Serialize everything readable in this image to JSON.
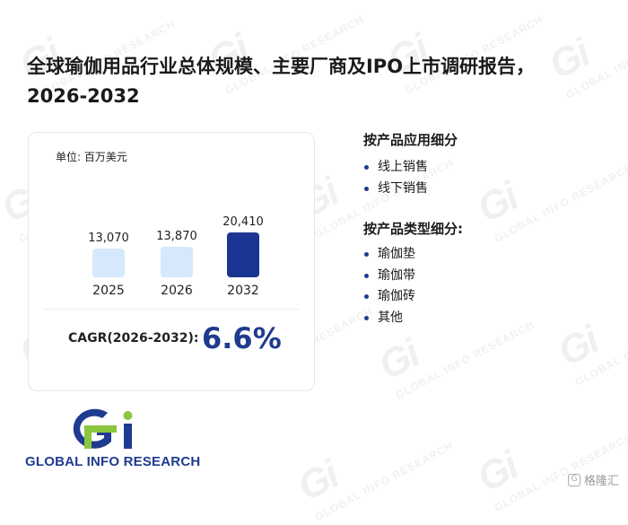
{
  "title": "全球瑜伽用品行业总体规模、主要厂商及IPO上市调研报告，2026-2032",
  "watermark": {
    "mark": "Gi",
    "text": "GLOBAL INFO RESEARCH"
  },
  "chart_data": {
    "type": "bar",
    "unit": "单位: 百万美元",
    "categories": [
      "2025",
      "2026",
      "2032"
    ],
    "values": [
      13070,
      13870,
      20410
    ],
    "value_labels": [
      "13,070",
      "13,870",
      "20,410"
    ],
    "bar_colors": [
      "#d6e8fb",
      "#d6e8fb",
      "#1a3692"
    ],
    "ylim": [
      0,
      20410
    ],
    "grid": false,
    "legend": "none"
  },
  "cagr": {
    "label": "CAGR(2026-2032):",
    "value": "6.6%"
  },
  "segments": [
    {
      "heading": "按产品应用细分",
      "items": [
        "线上销售",
        "线下销售"
      ]
    },
    {
      "heading": "按产品类型细分:",
      "items": [
        "瑜伽垫",
        "瑜伽带",
        "瑜伽砖",
        "其他"
      ]
    }
  ],
  "logo": {
    "mark": "Gi",
    "text": "GLOBAL INFO RESEARCH",
    "colors": {
      "blue": "#1f3b8f",
      "green": "#8cc63f"
    }
  },
  "corner_logo": {
    "icon": "brand-mark-icon",
    "text": "格隆汇"
  }
}
